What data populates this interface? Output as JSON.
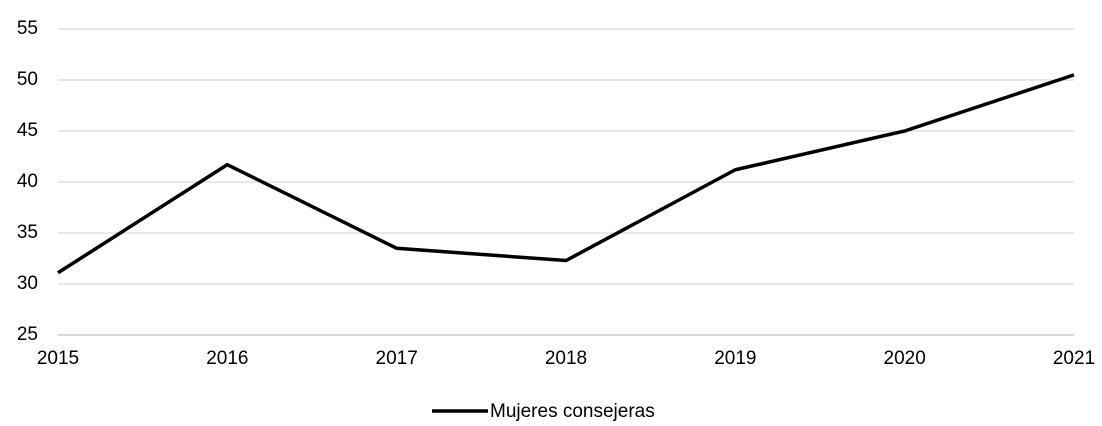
{
  "chart_data": {
    "type": "line",
    "x": [
      2015,
      2016,
      2017,
      2018,
      2019,
      2020,
      2021
    ],
    "series": [
      {
        "name": "Mujeres consejeras",
        "color": "#000000",
        "values": [
          31.1,
          41.7,
          33.5,
          32.3,
          41.2,
          45,
          50.5
        ]
      }
    ],
    "xlim": [
      2015,
      2021
    ],
    "xticks": [
      2015,
      2016,
      2017,
      2018,
      2019,
      2020,
      2021
    ],
    "ylim": [
      25,
      55
    ],
    "yticks": [
      25,
      30,
      35,
      40,
      45,
      50,
      55
    ],
    "grid": true,
    "legend": "bottom"
  }
}
